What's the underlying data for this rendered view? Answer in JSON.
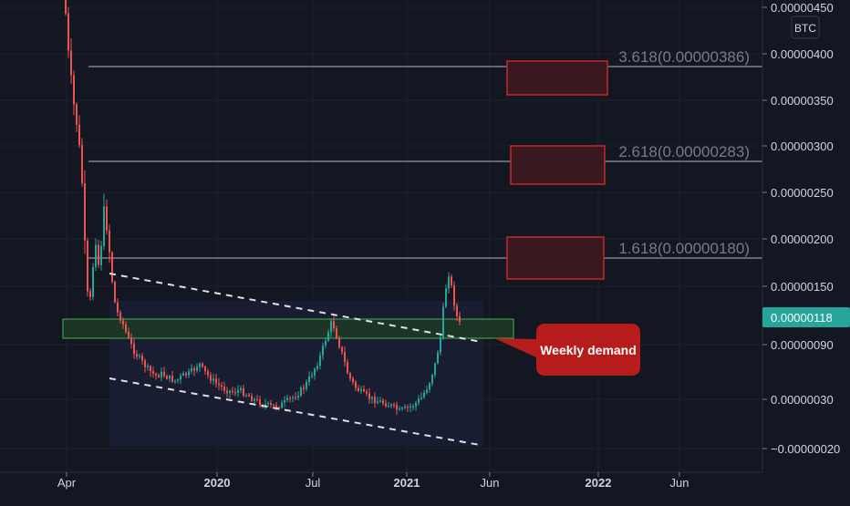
{
  "colors": {
    "background": "#131722",
    "grid": "#1c2030",
    "up": "#26a69a",
    "down": "#ef5350",
    "axis_text": "#d1d4dc",
    "fib_line": "#b2b5be",
    "fib_label": "#787b86",
    "demand_zone_fill": "#1f3a24",
    "demand_zone_border": "#4caf50",
    "target_box_fill": "#3a1820",
    "target_box_border": "#c62828",
    "callout_fill": "#b71c1c",
    "price_tag": "#26a69a"
  },
  "chart_data": {
    "type": "candlestick",
    "currency": "BTC",
    "y_axis": {
      "ticks": [
        "0.00000450",
        "0.00000400",
        "0.00000350",
        "0.00000300",
        "0.00000250",
        "0.00000200",
        "0.00000150",
        "0.00000090",
        "0.00000030",
        "−0.00000020"
      ],
      "range": [
        -3e-07,
        4.65e-06
      ]
    },
    "x_axis": {
      "ticks": [
        "Apr",
        "2020",
        "Jul",
        "2021",
        "Jun",
        "2022",
        "Jun"
      ]
    },
    "last_price": "0.00000118",
    "fib_levels": [
      {
        "label": "3.618(0.00000386)",
        "value": 3.86e-06
      },
      {
        "label": "2.618(0.00000283)",
        "value": 2.83e-06
      },
      {
        "label": "1.618(0.00000180)",
        "value": 1.8e-06
      }
    ],
    "demand_zone": {
      "low": 8.5e-07,
      "high": 1.08e-06
    },
    "annotation": "Weekly demand",
    "price_series": {
      "dates": [
        "2019-03",
        "2019-04",
        "2019-05",
        "2019-06",
        "2019-07",
        "2019-09",
        "2019-10",
        "2019-11",
        "2019-12",
        "2020-02",
        "2020-04",
        "2020-06",
        "2020-07",
        "2020-08",
        "2020-10",
        "2020-12",
        "2021-02",
        "2021-03",
        "2021-04"
      ],
      "values": [
        4.5e-06,
        1.7e-06,
        2.2e-06,
        1.2e-06,
        8e-07,
        5e-07,
        7e-07,
        4e-07,
        3.5e-07,
        2.5e-07,
        2.2e-07,
        4.5e-07,
        9.5e-07,
        4e-07,
        2.5e-07,
        2e-07,
        5.5e-07,
        1.7e-06,
        1.1e-06
      ]
    }
  }
}
